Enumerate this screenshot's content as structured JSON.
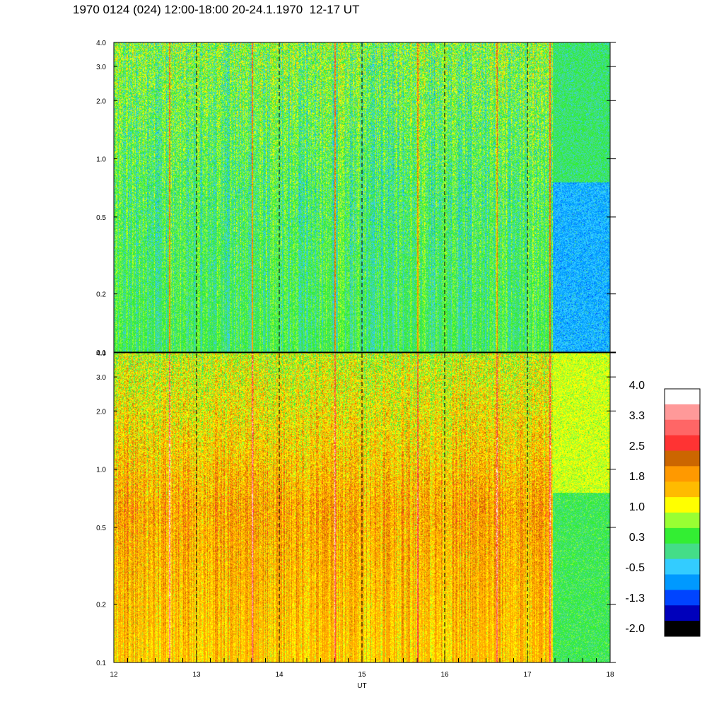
{
  "title": "1970 0124 (024) 12:00-18:00 20-24.1.1970  12-17 UT",
  "chart_data": {
    "type": "heatmap",
    "xlabel": "UT",
    "x_ticks": [
      "12",
      "13",
      "14",
      "15",
      "16",
      "17",
      "18"
    ],
    "xlim": [
      12,
      18
    ],
    "y_scale": "log",
    "ylim": [
      0.1,
      4.0
    ],
    "y_ticks": [
      "0.1",
      "0.2",
      "0.5",
      "1.0",
      "2.0",
      "3.0",
      "4.0"
    ],
    "dashed_hour_lines": [
      13,
      14,
      15,
      16,
      17
    ],
    "panels": [
      {
        "name": "upper",
        "dominant_level": 0.3,
        "description_levels": {
          "low_freq": 0.3,
          "mid_freq": 0.3,
          "high_freq": 0.6
        },
        "quiet_interval_start": 17.3,
        "quiet_level": -0.5
      },
      {
        "name": "lower",
        "dominant_level": 1.8,
        "description_levels": {
          "low_freq": 1.5,
          "mid_freq": 1.8,
          "high_freq": 1.0
        },
        "quiet_interval_start": 17.3,
        "quiet_level": 0.3
      }
    ],
    "spikes_ut": [
      12.67,
      13.67,
      14.67,
      15.67,
      16.63,
      17.27
    ],
    "colorbar": {
      "labels": [
        "4.0",
        "3.3",
        "2.5",
        "1.8",
        "1.0",
        "0.3",
        "-0.5",
        "-1.3",
        "-2.0"
      ],
      "colors": [
        "#ffffff",
        "#ff9999",
        "#ff6666",
        "#ff3333",
        "#cc6600",
        "#ff9900",
        "#ffbb00",
        "#ffff00",
        "#99ff33",
        "#33ee33",
        "#44dd88",
        "#33ccff",
        "#0099ff",
        "#0044ff",
        "#0000bb",
        "#000000"
      ]
    }
  }
}
